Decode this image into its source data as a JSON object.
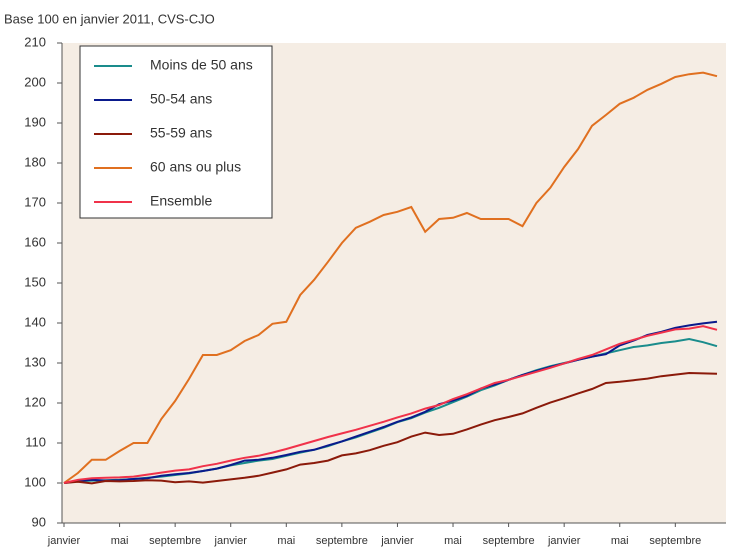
{
  "chart_data": {
    "type": "line",
    "subtitle": "Base 100 en janvier 2011, CVS-CJO",
    "categories": [
      "janvier",
      null,
      null,
      null,
      "mai",
      null,
      null,
      null,
      "septembre",
      null,
      null,
      null,
      "janvier",
      null,
      null,
      null,
      "mai",
      null,
      null,
      null,
      "septembre",
      null,
      null,
      null,
      "janvier",
      null,
      null,
      null,
      "mai",
      null,
      null,
      null,
      "septembre",
      null,
      null,
      null,
      "janvier",
      null,
      null,
      null,
      "mai",
      null,
      null,
      null,
      "septembre",
      null,
      null,
      null
    ],
    "series": [
      {
        "name": "Moins de 50 ans",
        "color": "#1a8c8c",
        "values": [
          100,
          100.4,
          100.6,
          100.7,
          100.8,
          101,
          101.3,
          101.6,
          102,
          102.4,
          103,
          103.6,
          104.4,
          105,
          105.6,
          106,
          106.8,
          107.6,
          108.3,
          109.2,
          110.4,
          111.4,
          112.6,
          113.8,
          115.2,
          116.2,
          117.6,
          118.8,
          120.2,
          121.6,
          123.2,
          124.4,
          125.8,
          127,
          128.2,
          129.2,
          130,
          130.8,
          131.6,
          132.4,
          133.2,
          134,
          134.4,
          135,
          135.4,
          136,
          135.2,
          134.2
        ]
      },
      {
        "name": "50-54 ans",
        "color": "#0a1a8c",
        "values": [
          100,
          100.5,
          100.8,
          100.6,
          100.7,
          101,
          101.2,
          101.8,
          102.2,
          102.5,
          103,
          103.6,
          104.5,
          105.6,
          105.8,
          106.3,
          107,
          107.8,
          108.3,
          109.4,
          110.4,
          111.6,
          112.8,
          114,
          115.3,
          116.4,
          117.8,
          119.7,
          120.6,
          121.8,
          123.6,
          124.6,
          125.8,
          127,
          128,
          129,
          129.9,
          130.8,
          131.6,
          132.2,
          134.4,
          135.6,
          137,
          137.8,
          138.8,
          139.4,
          139.9,
          140.3
        ]
      },
      {
        "name": "55-59 ans",
        "color": "#8b1a0a",
        "values": [
          100,
          100.3,
          99.9,
          100.5,
          100.4,
          100.5,
          100.7,
          100.6,
          100.2,
          100.4,
          100.1,
          100.5,
          100.9,
          101.3,
          101.8,
          102.6,
          103.4,
          104.6,
          105,
          105.6,
          106.9,
          107.4,
          108.2,
          109.3,
          110.2,
          111.6,
          112.6,
          112,
          112.3,
          113.4,
          114.6,
          115.7,
          116.5,
          117.4,
          118.8,
          120.1,
          121.2,
          122.4,
          123.5,
          125,
          125.3,
          125.7,
          126.1,
          126.7,
          127.1,
          127.5,
          127.4,
          127.3
        ]
      },
      {
        "name": "60 ans ou plus",
        "color": "#e07020",
        "values": [
          100,
          102.5,
          105.8,
          105.8,
          108,
          110,
          110,
          116,
          120.5,
          126,
          132,
          132,
          133.2,
          135.5,
          137,
          139.8,
          140.3,
          147,
          150.8,
          155.3,
          160,
          163.8,
          165.3,
          167,
          167.8,
          169,
          162.8,
          166,
          166.3,
          167.5,
          166,
          166,
          166,
          164.2,
          170,
          173.8,
          179,
          183.5,
          189.3,
          192,
          194.8,
          196.3,
          198.3,
          199.8,
          201.5,
          202.2,
          202.6,
          201.7
        ]
      },
      {
        "name": "Ensemble",
        "color": "#f0324a",
        "values": [
          100,
          100.8,
          101.2,
          101.3,
          101.4,
          101.6,
          102.1,
          102.6,
          103.1,
          103.4,
          104.2,
          104.8,
          105.6,
          106.3,
          106.8,
          107.6,
          108.5,
          109.5,
          110.5,
          111.5,
          112.4,
          113.3,
          114.3,
          115.3,
          116.4,
          117.4,
          118.6,
          119.5,
          121,
          122.2,
          123.6,
          125,
          125.8,
          126.8,
          127.8,
          128.8,
          129.9,
          131,
          132,
          133.4,
          134.8,
          135.8,
          136.8,
          137.6,
          138.4,
          138.6,
          139.2,
          138.3
        ]
      }
    ],
    "ylim": [
      90,
      210
    ],
    "yticks": [
      90,
      100,
      110,
      120,
      130,
      140,
      150,
      160,
      170,
      180,
      190,
      200,
      210
    ],
    "legend": "upper left",
    "background": "#f5ede4"
  }
}
